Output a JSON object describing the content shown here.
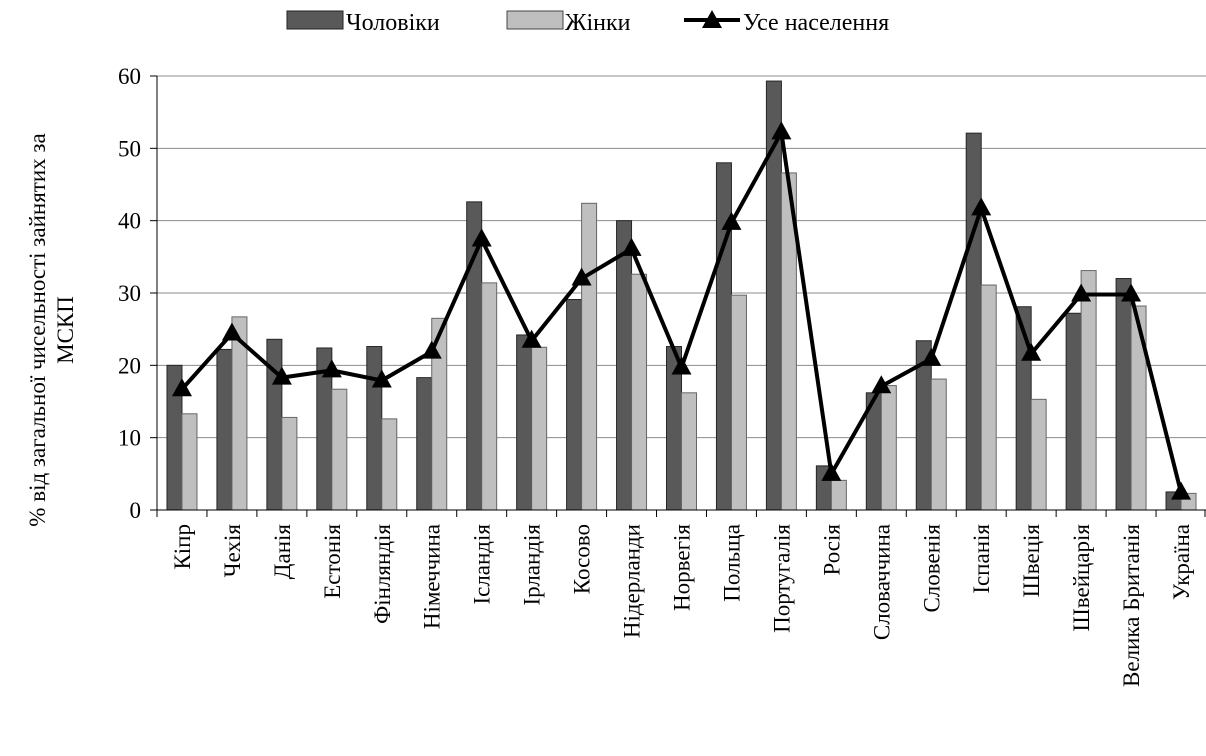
{
  "chart_data": {
    "type": "bar",
    "ylabel_lines": [
      "% від загальної чисельності зайнятих за",
      "МСКП"
    ],
    "ylim": [
      0,
      60
    ],
    "yticks": [
      0,
      10,
      20,
      30,
      40,
      50,
      60
    ],
    "grid": true,
    "legend_position": "top",
    "categories": [
      "Кіпр",
      "Чехія",
      "Данія",
      "Естонія",
      "Фінляндія",
      "Німеччина",
      "Ісландія",
      "Ірландія",
      "Косово",
      "Нідерланди",
      "Норвегія",
      "Польща",
      "Португалія",
      "Росія",
      "Словаччина",
      "Словенія",
      "Іспанія",
      "Швеція",
      "Швейцарія",
      "Велика Британія",
      "Україна"
    ],
    "series": [
      {
        "name": "Чоловіки",
        "kind": "bar",
        "color": "#595959",
        "values": [
          20,
          22.2,
          23.6,
          22.4,
          22.6,
          18.3,
          42.6,
          24.2,
          29.1,
          40,
          22.6,
          48,
          59.3,
          6.1,
          16.2,
          23.4,
          52.1,
          28.1,
          27.2,
          32,
          2.5
        ]
      },
      {
        "name": "Жінки",
        "kind": "bar",
        "color": "#bfbfbf",
        "values": [
          13.3,
          26.7,
          12.8,
          16.7,
          12.6,
          26.5,
          31.4,
          22.5,
          42.4,
          32.6,
          16.2,
          29.7,
          46.6,
          4.1,
          17.2,
          18.1,
          31.1,
          15.3,
          33.1,
          28.2,
          2.3
        ]
      },
      {
        "name": "Усе населення",
        "kind": "line",
        "color": "#000000",
        "values": [
          16.7,
          24.4,
          18.3,
          19.3,
          17.9,
          21.9,
          37.4,
          23.4,
          32,
          36.1,
          19.7,
          39.7,
          52.2,
          5,
          17.1,
          20.9,
          41.7,
          21.6,
          29.8,
          29.8,
          2.4
        ]
      }
    ]
  }
}
